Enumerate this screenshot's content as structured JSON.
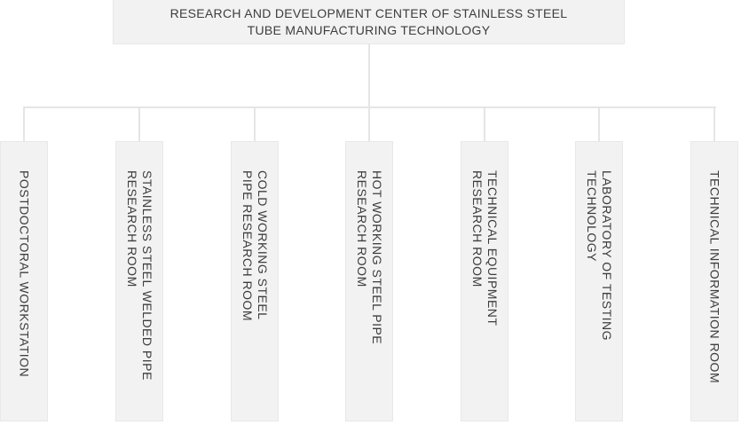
{
  "diagram": {
    "type": "org-chart",
    "root": {
      "label": [
        "RESEARCH AND DEVELOPMENT CENTER OF STAINLESS STEEL",
        "TUBE MANUFACTURING TECHNOLOGY"
      ]
    },
    "departments": [
      {
        "label": [
          "POSTDOCTORAL WORKSTATION"
        ]
      },
      {
        "label": [
          "STAINLESS STEEL WELDED PIPE",
          "RESEARCH ROOM"
        ]
      },
      {
        "label": [
          "COLD WORKING STEEL",
          "PIPE RESEARCH ROOM"
        ]
      },
      {
        "label": [
          "HOT WORKING STEEL PIPE",
          "RESEARCH ROOM"
        ]
      },
      {
        "label": [
          "TECHNICAL EQUIPMENT",
          "RESEARCH ROOM"
        ]
      },
      {
        "label": [
          "LABORATORY OF TESTING",
          "TECHNOLOGY"
        ]
      },
      {
        "label": [
          "TECHNICAL INFORMATION ROOM"
        ]
      }
    ],
    "colors": {
      "background": "#ffffff",
      "box_fill": "#f2f2f2",
      "box_border": "#e8e8e8",
      "connector": "#e5e5e5",
      "text": "#3d3d3d"
    }
  }
}
